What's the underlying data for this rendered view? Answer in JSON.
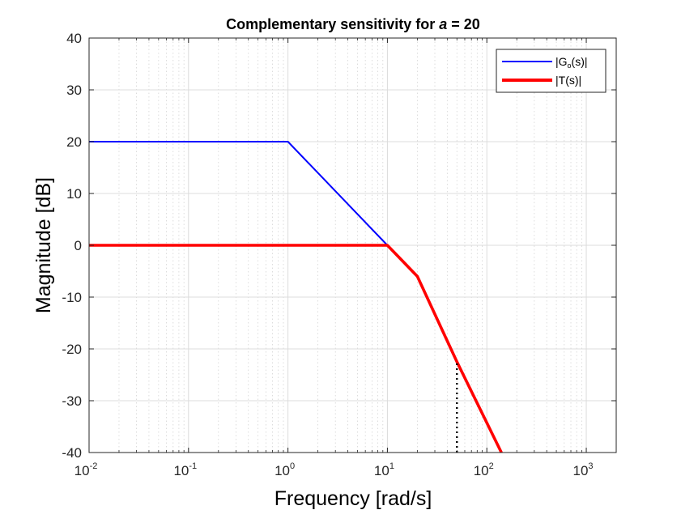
{
  "chart_data": {
    "type": "line",
    "title": {
      "text": "Complementary sensitivity for ",
      "symbol": "a",
      "suffix": " = 20"
    },
    "xlabel": "Frequency [rad/s]",
    "ylabel": "Magnitude [dB]",
    "xscale": "log",
    "xlim": [
      0.01,
      2000
    ],
    "ylim": [
      -40,
      40
    ],
    "x_ticks": [
      {
        "base": "10",
        "exp": "-2",
        "value": 0.01
      },
      {
        "base": "10",
        "exp": "-1",
        "value": 0.1
      },
      {
        "base": "10",
        "exp": "0",
        "value": 1
      },
      {
        "base": "10",
        "exp": "1",
        "value": 10
      },
      {
        "base": "10",
        "exp": "2",
        "value": 100
      },
      {
        "base": "10",
        "exp": "3",
        "value": 1000
      }
    ],
    "y_ticks": [
      "40",
      "30",
      "20",
      "10",
      "0",
      "-10",
      "-20",
      "-30",
      "-40"
    ],
    "grid": true,
    "minor_grid": true,
    "legend_position": "top-right",
    "series": [
      {
        "name": {
          "pre": "|G",
          "sub": "o",
          "post": "(s)|"
        },
        "color": "#0000ff",
        "x": [
          0.01,
          1,
          10
        ],
        "y": [
          20,
          20,
          0
        ]
      },
      {
        "name": {
          "pre": "|T(s)|",
          "sub": "",
          "post": ""
        },
        "color": "#ff0000",
        "x": [
          0.01,
          10,
          20,
          50,
          140
        ],
        "y": [
          0,
          0,
          -6,
          -22.5,
          -40
        ]
      }
    ],
    "annotations": [
      {
        "type": "dotted-vertical",
        "x": 50,
        "y_from": -40,
        "y_to": -22.5,
        "color": "#000000"
      }
    ]
  }
}
